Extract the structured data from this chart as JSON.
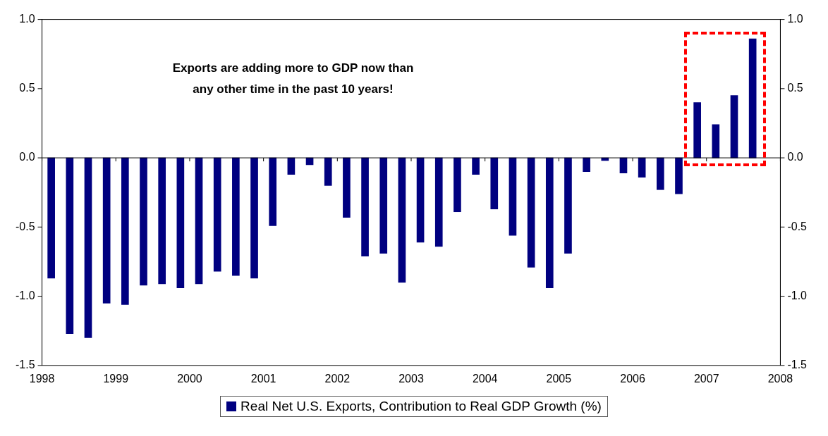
{
  "chart_data": {
    "type": "bar",
    "x": [
      1998.125,
      1998.375,
      1998.625,
      1998.875,
      1999.125,
      1999.375,
      1999.625,
      1999.875,
      2000.125,
      2000.375,
      2000.625,
      2000.875,
      2001.125,
      2001.375,
      2001.625,
      2001.875,
      2002.125,
      2002.375,
      2002.625,
      2002.875,
      2003.125,
      2003.375,
      2003.625,
      2003.875,
      2004.125,
      2004.375,
      2004.625,
      2004.875,
      2005.125,
      2005.375,
      2005.625,
      2005.875,
      2006.125,
      2006.375,
      2006.625,
      2006.875,
      2007.125,
      2007.375,
      2007.625
    ],
    "series": [
      {
        "name": "Real Net U.S. Exports, Contribution to Real GDP Growth (%)",
        "color": "#000080",
        "values": [
          -0.87,
          -1.27,
          -1.3,
          -1.05,
          -1.06,
          -0.92,
          -0.91,
          -0.94,
          -0.91,
          -0.82,
          -0.85,
          -0.87,
          -0.49,
          -0.12,
          -0.05,
          -0.2,
          -0.43,
          -0.71,
          -0.69,
          -0.9,
          -0.61,
          -0.64,
          -0.39,
          -0.12,
          -0.37,
          -0.56,
          -0.79,
          -0.94,
          -0.69,
          -0.1,
          -0.02,
          -0.11,
          -0.14,
          -0.23,
          -0.26,
          0.4,
          0.24,
          0.45,
          0.86
        ]
      }
    ],
    "xlim": [
      1998,
      2008
    ],
    "xticks": [
      1998,
      1999,
      2000,
      2001,
      2002,
      2003,
      2004,
      2005,
      2006,
      2007,
      2008
    ],
    "ylim": [
      -1.5,
      1.0
    ],
    "yticks": [
      {
        "value": -1.5,
        "label": "-1.5"
      },
      {
        "value": -1.0,
        "label": "-1.0"
      },
      {
        "value": -0.5,
        "label": "-0.5"
      },
      {
        "value": 0,
        "label": "0.0"
      },
      {
        "value": 0.5,
        "label": "0.5"
      },
      {
        "value": 1.0,
        "label": "1.0"
      }
    ],
    "y2lim": [
      -1.5,
      1.0
    ],
    "y2ticks": [
      {
        "value": -1.5,
        "label": "-1.5"
      },
      {
        "value": -1.0,
        "label": "-1.0"
      },
      {
        "value": -0.5,
        "label": "-0.5"
      },
      {
        "value": 0,
        "label": "0.0"
      },
      {
        "value": 0.5,
        "label": "0.5"
      },
      {
        "value": 1.0,
        "label": "1.0"
      }
    ],
    "annotations": [
      "Exports are adding more to GDP now than\nany other time in the past 10 years!"
    ],
    "ref_lines": [
      {
        "axis": "y",
        "value": 0,
        "color": "#000000"
      }
    ],
    "grid": false,
    "legend": "bottom"
  }
}
